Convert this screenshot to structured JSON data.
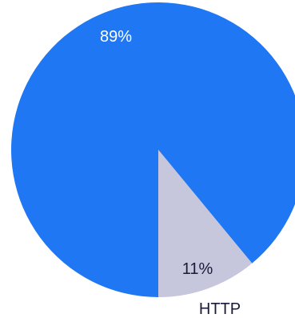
{
  "chart_data": {
    "type": "pie",
    "slices": [
      {
        "label": "",
        "value": 89,
        "percent_label": "89%",
        "color": "#1f77f4",
        "text_color": "#ffffff"
      },
      {
        "label": "HTTP",
        "value": 11,
        "percent_label": "11%",
        "color": "#c6c6dc",
        "text_color": "#1a1a3a"
      }
    ],
    "legend": "none"
  }
}
